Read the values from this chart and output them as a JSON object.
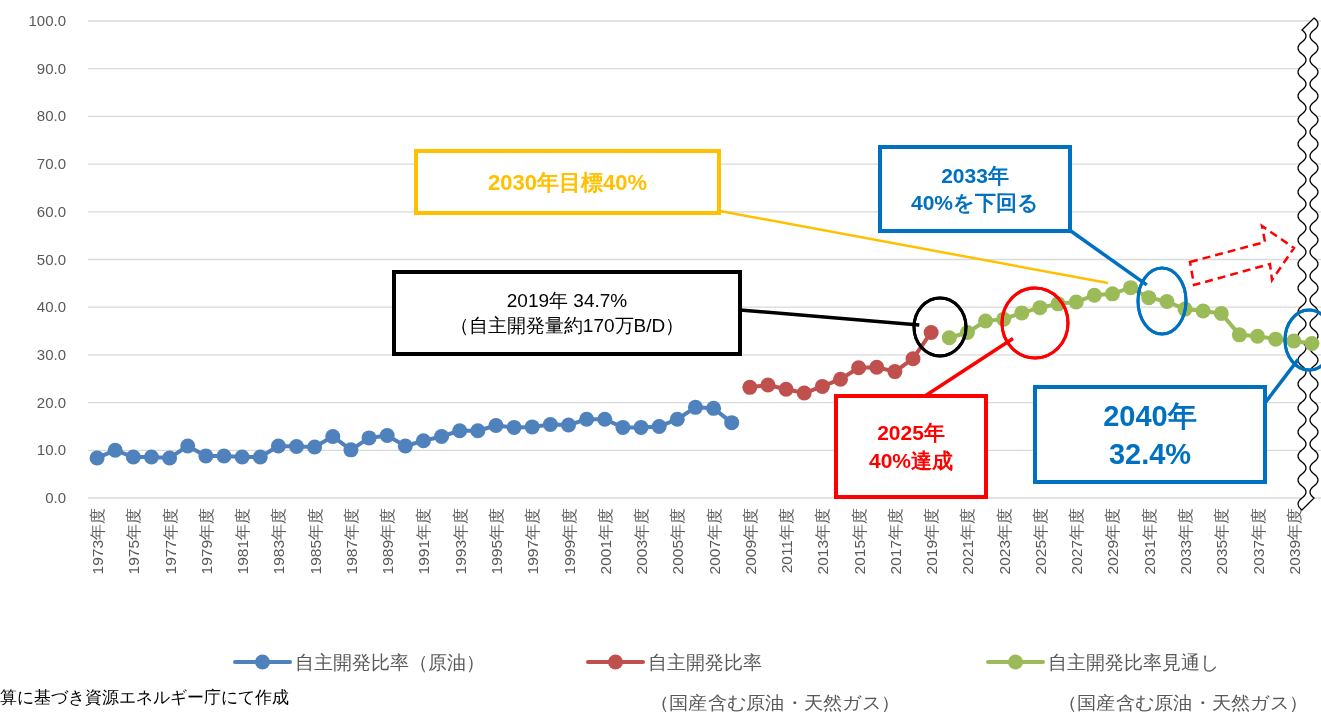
{
  "chart_data": {
    "type": "line",
    "categories": [
      "1973年度",
      null,
      "1975年度",
      null,
      "1977年度",
      null,
      "1979年度",
      null,
      "1981年度",
      null,
      "1983年度",
      null,
      "1985年度",
      null,
      "1987年度",
      null,
      "1989年度",
      null,
      "1991年度",
      null,
      "1993年度",
      null,
      "1995年度",
      null,
      "1997年度",
      null,
      "1999年度",
      null,
      "2001年度",
      null,
      "2003年度",
      null,
      "2005年度",
      null,
      "2007年度",
      null,
      "2009年度",
      null,
      "2011年度",
      null,
      "2013年度",
      null,
      "2015年度",
      null,
      "2017年度",
      null,
      "2019年度",
      null,
      "2021年度",
      null,
      "2023年度",
      null,
      "2025年度",
      null,
      "2027年度",
      null,
      "2029年度",
      null,
      "2031年度",
      null,
      "2033年度",
      null,
      "2035年度",
      null,
      "2037年度",
      null,
      "2039年度",
      null
    ],
    "series": [
      {
        "name": "自主開発比率（原油）",
        "color": "#4f81bd",
        "values": [
          8.4,
          10.0,
          8.6,
          8.6,
          8.4,
          10.9,
          8.8,
          8.8,
          8.6,
          8.6,
          10.9,
          10.8,
          10.7,
          12.9,
          10.1,
          12.6,
          13.1,
          10.9,
          12.0,
          12.9,
          14.1,
          14.1,
          15.2,
          14.8,
          14.9,
          15.4,
          15.3,
          16.5,
          16.5,
          14.8,
          14.8,
          15.0,
          16.5,
          19.0,
          18.8,
          15.8,
          null,
          null,
          null,
          null,
          null,
          null,
          null,
          null,
          null,
          null,
          null,
          null,
          null,
          null,
          null,
          null,
          null,
          null,
          null,
          null,
          null,
          null,
          null,
          null,
          null,
          null,
          null,
          null,
          null,
          null,
          null,
          null
        ]
      },
      {
        "name": "自主開発比率（国産含む原油・天然ガス）",
        "color": "#c0504d",
        "values": [
          null,
          null,
          null,
          null,
          null,
          null,
          null,
          null,
          null,
          null,
          null,
          null,
          null,
          null,
          null,
          null,
          null,
          null,
          null,
          null,
          null,
          null,
          null,
          null,
          null,
          null,
          null,
          null,
          null,
          null,
          null,
          null,
          null,
          null,
          null,
          null,
          23.2,
          23.7,
          22.8,
          22.0,
          23.4,
          24.9,
          27.3,
          27.4,
          26.5,
          29.2,
          34.7,
          null,
          null,
          null,
          null,
          null,
          null,
          null,
          null,
          null,
          null,
          null,
          null,
          null,
          null,
          null,
          null,
          null,
          null,
          null,
          null,
          null
        ]
      },
      {
        "name": "自主開発比率見通し（国産含む原油・天然ガス）",
        "color": "#9bbb59",
        "values": [
          null,
          null,
          null,
          null,
          null,
          null,
          null,
          null,
          null,
          null,
          null,
          null,
          null,
          null,
          null,
          null,
          null,
          null,
          null,
          null,
          null,
          null,
          null,
          null,
          null,
          null,
          null,
          null,
          null,
          null,
          null,
          null,
          null,
          null,
          null,
          null,
          null,
          null,
          null,
          null,
          null,
          null,
          null,
          null,
          null,
          null,
          null,
          33.6,
          34.7,
          37.1,
          37.5,
          38.8,
          39.9,
          40.7,
          41.1,
          42.5,
          42.8,
          44.1,
          42.0,
          41.2,
          39.6,
          39.2,
          38.7,
          34.2,
          33.9,
          33.3,
          32.9,
          32.4
        ]
      }
    ],
    "ylim": [
      0,
      100
    ],
    "yticks": [
      {
        "value": 0,
        "label": "0.0"
      },
      {
        "value": 10,
        "label": "10.0"
      },
      {
        "value": 20,
        "label": "20.0"
      },
      {
        "value": 30,
        "label": "30.0"
      },
      {
        "value": 40,
        "label": "40.0"
      },
      {
        "value": 50,
        "label": "50.0"
      },
      {
        "value": 60,
        "label": "60.0"
      },
      {
        "value": 70,
        "label": "70.0"
      },
      {
        "value": 80,
        "label": "80.0"
      },
      {
        "value": 90,
        "label": "90.0"
      },
      {
        "value": 100,
        "label": "100.0"
      }
    ],
    "grid": "y",
    "marker": "circle",
    "line_style": "solid",
    "legend": "bottom",
    "annotations": [
      "2030年目標40%",
      "2033年\n40%を下回る",
      "2019年 34.7%\n（自主開発量約170万B/D）",
      "2025年\n40%達成",
      "2040年\n32.4%",
      "算に基づき資源エネルギー庁にて作成"
    ]
  }
}
